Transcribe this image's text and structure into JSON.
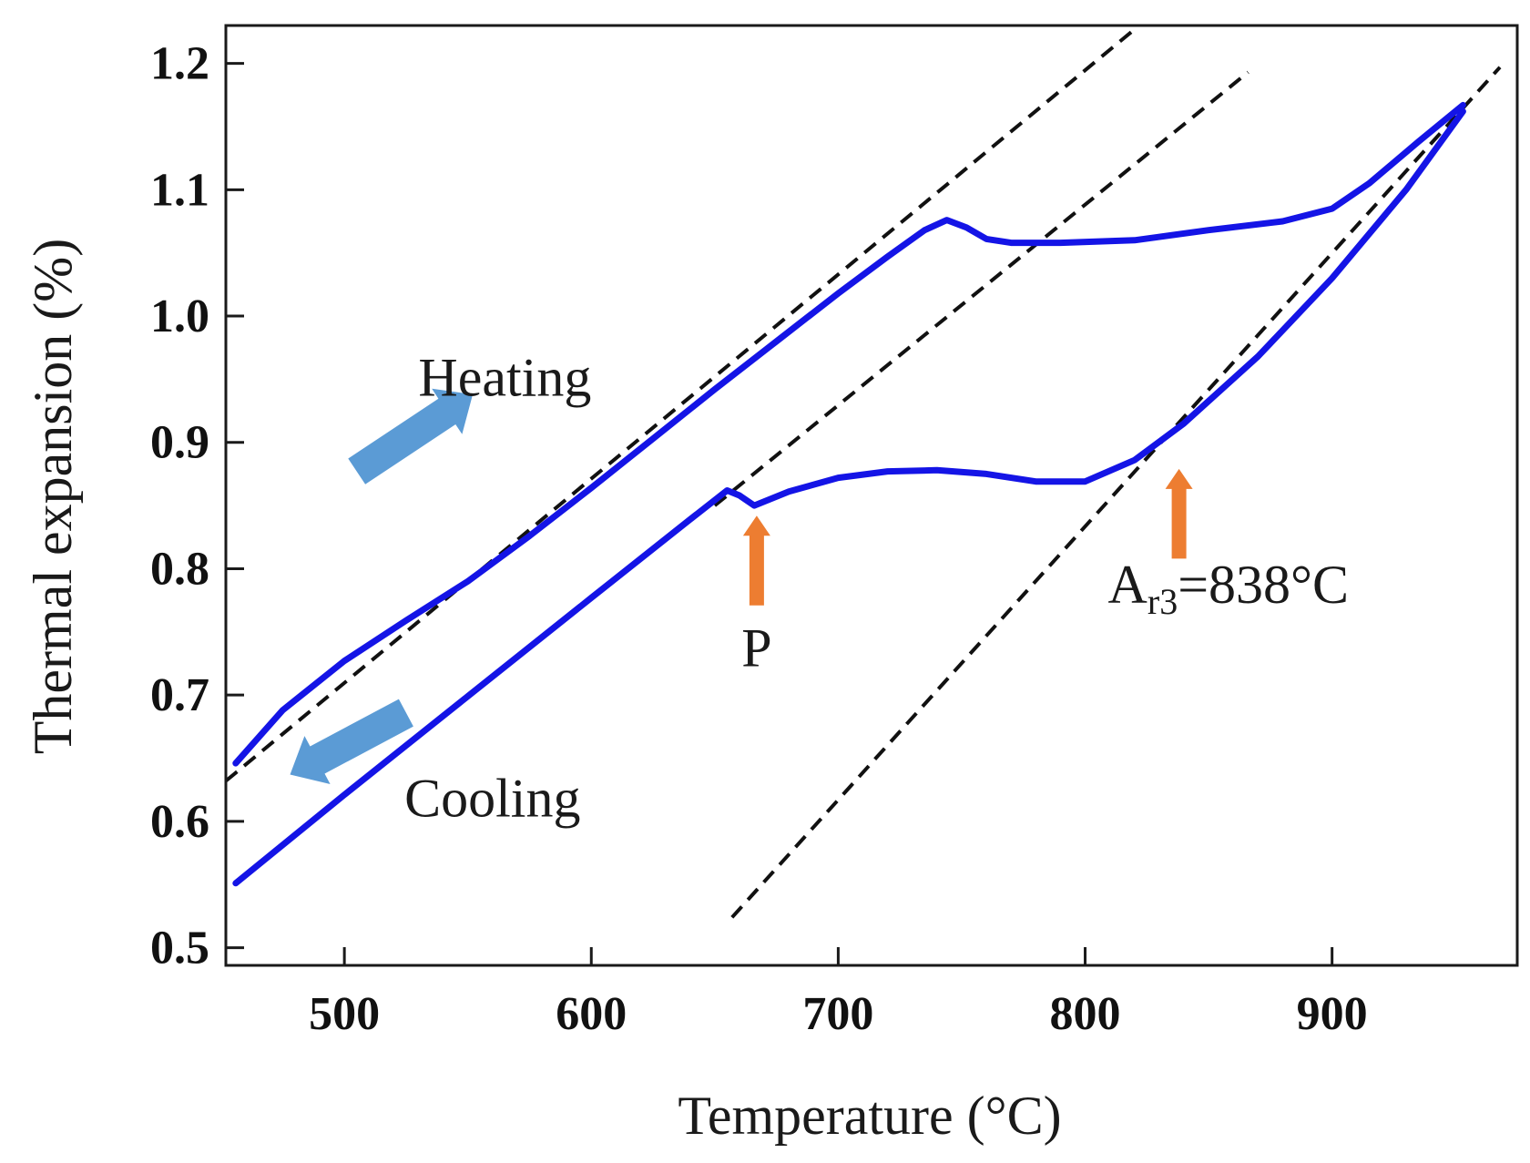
{
  "chart_data": {
    "type": "line",
    "title": "",
    "xlabel": "Temperature (°C)",
    "ylabel": "Thermal expansion (%)",
    "xlim": [
      452,
      975
    ],
    "ylim": [
      0.486,
      1.23
    ],
    "x_ticks": [
      500,
      600,
      700,
      800,
      900
    ],
    "x_tick_labels": [
      "500",
      "600",
      "700",
      "800",
      "900"
    ],
    "y_ticks": [
      0.5,
      0.6,
      0.7,
      0.8,
      0.9,
      1.0,
      1.1,
      1.2
    ],
    "y_tick_labels": [
      "0.5",
      "0.6",
      "0.7",
      "0.8",
      "0.9",
      "1.0",
      "1.1",
      "1.2"
    ],
    "grid": false,
    "legend": "none",
    "series": [
      {
        "name": "Heating",
        "color": "#1414e6",
        "x": [
          456,
          475,
          500,
          525,
          550,
          575,
          600,
          625,
          650,
          675,
          700,
          720,
          735,
          744,
          752,
          760,
          770,
          790,
          820,
          850,
          880,
          900,
          915,
          935,
          953
        ],
        "y": [
          0.646,
          0.688,
          0.727,
          0.759,
          0.79,
          0.826,
          0.864,
          0.903,
          0.942,
          0.98,
          1.018,
          1.047,
          1.068,
          1.076,
          1.07,
          1.061,
          1.058,
          1.058,
          1.06,
          1.068,
          1.075,
          1.085,
          1.105,
          1.138,
          1.167
        ]
      },
      {
        "name": "Cooling",
        "color": "#1414e6",
        "x": [
          456,
          500,
          550,
          600,
          640,
          655,
          660,
          666,
          680,
          700,
          720,
          740,
          760,
          780,
          800,
          820,
          840,
          870,
          900,
          930,
          953
        ],
        "y": [
          0.551,
          0.621,
          0.699,
          0.777,
          0.839,
          0.862,
          0.858,
          0.85,
          0.861,
          0.872,
          0.877,
          0.878,
          0.875,
          0.869,
          0.869,
          0.886,
          0.915,
          0.968,
          1.03,
          1.1,
          1.162
        ]
      },
      {
        "name": "Tangent line 1",
        "style": "dashed",
        "color": "#111111",
        "x": [
          452,
          820
        ],
        "y": [
          0.632,
          1.227
        ]
      },
      {
        "name": "Tangent line 2",
        "style": "dashed",
        "color": "#111111",
        "x": [
          650,
          866
        ],
        "y": [
          0.85,
          1.193
        ]
      },
      {
        "name": "Tangent line 3",
        "style": "dashed",
        "color": "#111111",
        "x": [
          657,
          968
        ],
        "y": [
          0.524,
          1.197
        ]
      }
    ],
    "annotations": [
      {
        "text": "Heating",
        "x": 565,
        "y": 0.937
      },
      {
        "text": "Cooling",
        "x": 560,
        "y": 0.604
      },
      {
        "text": "P",
        "x": 667,
        "y": 0.723
      },
      {
        "text_main": "A",
        "text_sub": "r3",
        "text_rest": "=838°C",
        "x": 858,
        "y": 0.773
      }
    ],
    "arrows": [
      {
        "name": "heating-arrow",
        "color": "#5b9bd5",
        "x1": 505,
        "y1": 0.877,
        "x2": 552,
        "y2": 0.938
      },
      {
        "name": "cooling-arrow",
        "color": "#5b9bd5",
        "x1": 525,
        "y1": 0.686,
        "x2": 478,
        "y2": 0.637
      },
      {
        "name": "p-arrow",
        "color": "#ed7d31",
        "x1": 667,
        "y1": 0.771,
        "x2": 667,
        "y2": 0.842
      },
      {
        "name": "ar3-arrow",
        "color": "#ed7d31",
        "x1": 838,
        "y1": 0.808,
        "x2": 838,
        "y2": 0.879
      }
    ]
  }
}
